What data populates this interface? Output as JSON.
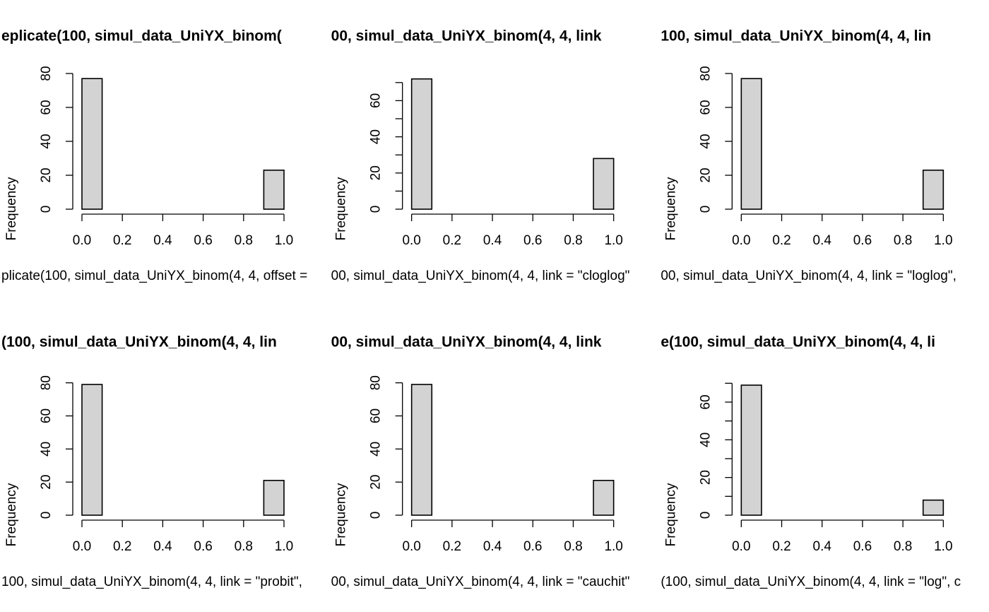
{
  "chart_data": [
    {
      "type": "histogram",
      "title": "eplicate(100, simul_data_UniYX_binom(",
      "xlabel": "plicate(100, simul_data_UniYX_binom(4, 4, offset =",
      "ylabel": "Frequency",
      "bins": [
        0,
        0.1,
        0.2,
        0.3,
        0.4,
        0.5,
        0.6,
        0.7,
        0.8,
        0.9,
        1.0
      ],
      "values": [
        77,
        0,
        0,
        0,
        0,
        0,
        0,
        0,
        0,
        23
      ],
      "color": "#d3d3d3",
      "xlim": [
        0,
        1
      ],
      "xticks": [
        {
          "value": 0,
          "label": "0.0"
        },
        0.2,
        0.4,
        0.6,
        0.8,
        {
          "value": 1,
          "label": "1.0"
        }
      ],
      "ylim": [
        0,
        80
      ],
      "yticks": [
        0,
        20,
        40,
        60,
        80
      ],
      "yticks_minor": []
    },
    {
      "type": "histogram",
      "title": "00, simul_data_UniYX_binom(4, 4, link",
      "xlabel": "00, simul_data_UniYX_binom(4, 4, link = \"cloglog\"",
      "ylabel": "Frequency",
      "bins": [
        0,
        0.1,
        0.2,
        0.3,
        0.4,
        0.5,
        0.6,
        0.7,
        0.8,
        0.9,
        1.0
      ],
      "values": [
        72,
        0,
        0,
        0,
        0,
        0,
        0,
        0,
        0,
        28
      ],
      "color": "#d3d3d3",
      "xlim": [
        0,
        1
      ],
      "xticks": [
        {
          "value": 0,
          "label": "0.0"
        },
        0.2,
        0.4,
        0.6,
        0.8,
        {
          "value": 1,
          "label": "1.0"
        }
      ],
      "ylim": [
        0,
        75
      ],
      "yticks": [
        0,
        20,
        40,
        60
      ],
      "yticks_minor": [
        10,
        30,
        50,
        70
      ]
    },
    {
      "type": "histogram",
      "title": "100, simul_data_UniYX_binom(4, 4, lin",
      "xlabel": "00, simul_data_UniYX_binom(4, 4, link = \"loglog\",",
      "ylabel": "Frequency",
      "bins": [
        0,
        0.1,
        0.2,
        0.3,
        0.4,
        0.5,
        0.6,
        0.7,
        0.8,
        0.9,
        1.0
      ],
      "values": [
        77,
        0,
        0,
        0,
        0,
        0,
        0,
        0,
        0,
        23
      ],
      "color": "#d3d3d3",
      "xlim": [
        0,
        1
      ],
      "xticks": [
        {
          "value": 0,
          "label": "0.0"
        },
        0.2,
        0.4,
        0.6,
        0.8,
        {
          "value": 1,
          "label": "1.0"
        }
      ],
      "ylim": [
        0,
        80
      ],
      "yticks": [
        0,
        20,
        40,
        60,
        80
      ],
      "yticks_minor": []
    },
    {
      "type": "histogram",
      "title": "(100, simul_data_UniYX_binom(4, 4, lin",
      "xlabel": "100, simul_data_UniYX_binom(4, 4, link = \"probit\",",
      "ylabel": "Frequency",
      "bins": [
        0,
        0.1,
        0.2,
        0.3,
        0.4,
        0.5,
        0.6,
        0.7,
        0.8,
        0.9,
        1.0
      ],
      "values": [
        79,
        0,
        0,
        0,
        0,
        0,
        0,
        0,
        0,
        21
      ],
      "color": "#d3d3d3",
      "xlim": [
        0,
        1
      ],
      "xticks": [
        {
          "value": 0,
          "label": "0.0"
        },
        0.2,
        0.4,
        0.6,
        0.8,
        {
          "value": 1,
          "label": "1.0"
        }
      ],
      "ylim": [
        0,
        82
      ],
      "yticks": [
        0,
        20,
        40,
        60,
        80
      ],
      "yticks_minor": []
    },
    {
      "type": "histogram",
      "title": "00, simul_data_UniYX_binom(4, 4, link",
      "xlabel": "00, simul_data_UniYX_binom(4, 4, link = \"cauchit\"",
      "ylabel": "Frequency",
      "bins": [
        0,
        0.1,
        0.2,
        0.3,
        0.4,
        0.5,
        0.6,
        0.7,
        0.8,
        0.9,
        1.0
      ],
      "values": [
        79,
        0,
        0,
        0,
        0,
        0,
        0,
        0,
        0,
        21
      ],
      "color": "#d3d3d3",
      "xlim": [
        0,
        1
      ],
      "xticks": [
        {
          "value": 0,
          "label": "0.0"
        },
        0.2,
        0.4,
        0.6,
        0.8,
        {
          "value": 1,
          "label": "1.0"
        }
      ],
      "ylim": [
        0,
        82
      ],
      "yticks": [
        0,
        20,
        40,
        60,
        80
      ],
      "yticks_minor": []
    },
    {
      "type": "histogram",
      "title": "e(100, simul_data_UniYX_binom(4, 4, li",
      "xlabel": "(100, simul_data_UniYX_binom(4, 4, link = \"log\", c",
      "ylabel": "Frequency",
      "bins": [
        0,
        0.1,
        0.2,
        0.3,
        0.4,
        0.5,
        0.6,
        0.7,
        0.8,
        0.9,
        1.0
      ],
      "values": [
        69,
        0,
        0,
        0,
        0,
        0,
        0,
        0,
        0,
        8
      ],
      "color": "#d3d3d3",
      "xlim": [
        0,
        1
      ],
      "xticks": [
        {
          "value": 0,
          "label": "0.0"
        },
        0.2,
        0.4,
        0.6,
        0.8,
        {
          "value": 1,
          "label": "1.0"
        }
      ],
      "ylim": [
        0,
        72
      ],
      "yticks": [
        0,
        20,
        40,
        60
      ],
      "yticks_minor": [
        10,
        30,
        50,
        70
      ]
    }
  ]
}
